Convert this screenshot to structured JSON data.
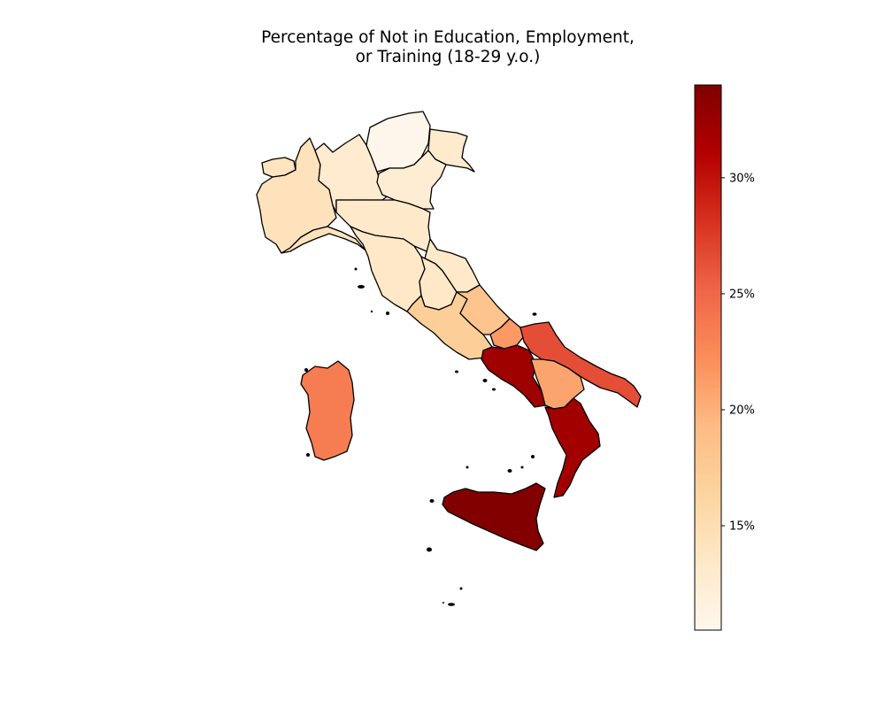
{
  "chart_data": {
    "type": "choropleth",
    "title_line1": "Percentage of Not in Education, Employment,",
    "title_line2": "or Training (18-29 y.o.)",
    "colormap": [
      "#fff7ec",
      "#fee8c8",
      "#fdd49e",
      "#fdbb84",
      "#fc8d59",
      "#ef6548",
      "#d7301f",
      "#b30000",
      "#7f0000"
    ],
    "colorbar": {
      "range": [
        10.5,
        34.0
      ],
      "ticks": [
        15,
        20,
        25,
        30
      ],
      "tick_labels": [
        "15%",
        "20%",
        "25%",
        "30%"
      ]
    },
    "regions": [
      {
        "name": "Valle d'Aosta",
        "value": 14.0
      },
      {
        "name": "Piemonte",
        "value": 14.3
      },
      {
        "name": "Lombardia",
        "value": 12.8
      },
      {
        "name": "Trentino-Alto Adige",
        "value": 10.6
      },
      {
        "name": "Veneto",
        "value": 12.5
      },
      {
        "name": "Friuli-Venezia Giulia",
        "value": 13.0
      },
      {
        "name": "Liguria",
        "value": 14.3
      },
      {
        "name": "Emilia-Romagna",
        "value": 13.2
      },
      {
        "name": "Toscana",
        "value": 13.5
      },
      {
        "name": "Umbria",
        "value": 13.4
      },
      {
        "name": "Marche",
        "value": 13.3
      },
      {
        "name": "Lazio",
        "value": 17.0
      },
      {
        "name": "Abruzzo",
        "value": 18.2
      },
      {
        "name": "Molise",
        "value": 21.5
      },
      {
        "name": "Campania",
        "value": 32.2
      },
      {
        "name": "Puglia",
        "value": 26.5
      },
      {
        "name": "Basilicata",
        "value": 20.8
      },
      {
        "name": "Calabria",
        "value": 32.0
      },
      {
        "name": "Sicilia",
        "value": 33.8
      },
      {
        "name": "Sardegna",
        "value": 23.5
      }
    ]
  }
}
